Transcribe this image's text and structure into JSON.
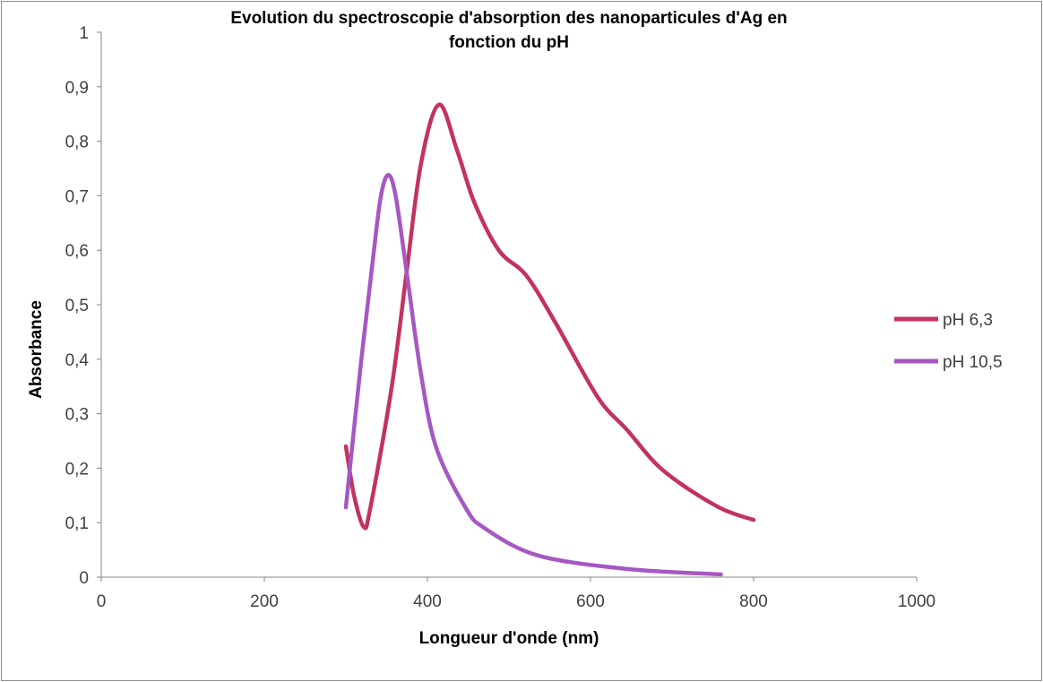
{
  "chart_data": {
    "type": "line",
    "title_lines": [
      "Evolution du spectroscopie d'absorption des nanoparticules d'Ag en",
      "fonction du pH"
    ],
    "xlabel": "Longueur d'onde (nm)",
    "ylabel": "Absorbance",
    "xlim": [
      0,
      1000
    ],
    "ylim": [
      0,
      1
    ],
    "x_ticks": [
      "0",
      "200",
      "400",
      "600",
      "800",
      "1000"
    ],
    "x_tick_values": [
      0,
      200,
      400,
      600,
      800,
      1000
    ],
    "y_ticks": [
      "0",
      "0,1",
      "0,2",
      "0,3",
      "0,4",
      "0,5",
      "0,6",
      "0,7",
      "0,8",
      "0,9",
      "1"
    ],
    "y_tick_values": [
      0,
      0.1,
      0.2,
      0.3,
      0.4,
      0.5,
      0.6,
      0.7,
      0.8,
      0.9,
      1
    ],
    "grid": false,
    "legend_position": "right",
    "series": [
      {
        "name": "pH 6,3",
        "color": "#c23360",
        "x": [
          300,
          310,
          322,
          330,
          356,
          374,
          392,
          414,
          436,
          458,
          488,
          521,
          557,
          609,
          645,
          689,
          755,
          800
        ],
        "y": [
          0.24,
          0.15,
          0.092,
          0.127,
          0.347,
          0.554,
          0.758,
          0.867,
          0.785,
          0.686,
          0.599,
          0.554,
          0.467,
          0.33,
          0.27,
          0.196,
          0.13,
          0.105
        ]
      },
      {
        "name": "pH 10,5",
        "color": "#a658c2",
        "x": [
          300,
          319,
          334,
          343,
          352,
          361,
          374,
          392,
          411,
          447,
          470,
          535,
          645,
          760
        ],
        "y": [
          0.128,
          0.4,
          0.594,
          0.7,
          0.738,
          0.7,
          0.566,
          0.374,
          0.237,
          0.127,
          0.09,
          0.04,
          0.015,
          0.005
        ]
      }
    ]
  }
}
